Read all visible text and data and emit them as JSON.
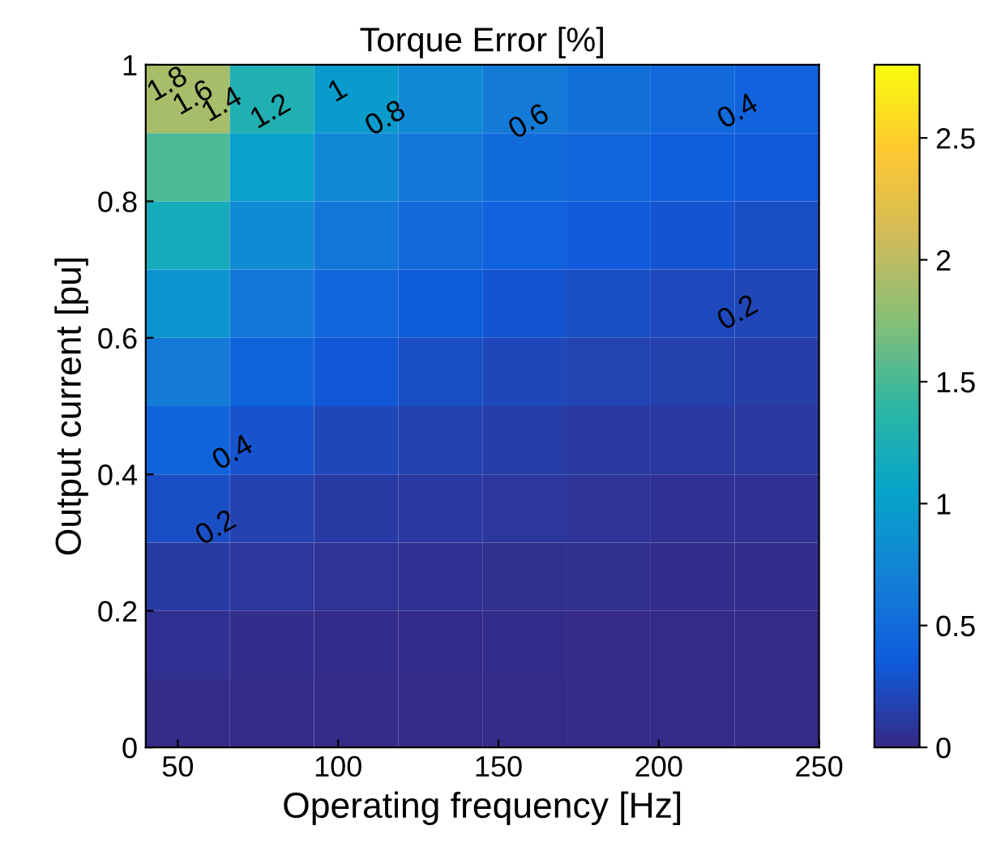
{
  "chart_data": {
    "type": "heatmap",
    "title": "Torque Error [%]",
    "xlabel": "Operating frequency [Hz]",
    "ylabel": "Output current [pu]",
    "x": [
      53.1,
      79.4,
      105.6,
      131.9,
      158.1,
      184.4,
      210.6,
      236.9
    ],
    "y": [
      0.95,
      0.85,
      0.75,
      0.65,
      0.55,
      0.45,
      0.35,
      0.25,
      0.15,
      0.05
    ],
    "cells": [
      [
        1.9,
        1.27,
        0.96,
        0.77,
        0.64,
        0.55,
        0.48,
        0.42
      ],
      [
        1.52,
        1.02,
        0.77,
        0.61,
        0.51,
        0.44,
        0.38,
        0.34
      ],
      [
        1.19,
        0.79,
        0.6,
        0.48,
        0.4,
        0.34,
        0.3,
        0.26
      ],
      [
        0.89,
        0.6,
        0.45,
        0.36,
        0.3,
        0.26,
        0.22,
        0.2
      ],
      [
        0.64,
        0.43,
        0.32,
        0.26,
        0.21,
        0.18,
        0.16,
        0.14
      ],
      [
        0.43,
        0.29,
        0.21,
        0.17,
        0.14,
        0.12,
        0.11,
        0.1
      ],
      [
        0.26,
        0.17,
        0.13,
        0.1,
        0.09,
        0.07,
        0.06,
        0.06
      ],
      [
        0.13,
        0.09,
        0.07,
        0.05,
        0.04,
        0.04,
        0.03,
        0.03
      ],
      [
        0.05,
        0.03,
        0.02,
        0.02,
        0.02,
        0.01,
        0.01,
        0.01
      ],
      [
        0.01,
        0,
        0,
        0,
        0,
        0,
        0,
        0
      ]
    ],
    "xlim": [
      40,
      250
    ],
    "xticks": [
      50,
      100,
      150,
      200,
      250
    ],
    "ylim": [
      0,
      1
    ],
    "yticks": [
      0,
      0.2,
      0.4,
      0.6,
      0.8,
      1
    ],
    "clim": [
      0,
      2.8
    ],
    "cticks": [
      0,
      0.5,
      1,
      1.5,
      2,
      2.5
    ],
    "annotations": [
      "0.2",
      "0.4",
      "0.2",
      "0.4",
      "0.6",
      "0.8",
      "1",
      "1.2",
      "1.4",
      "1.6",
      "1.8"
    ]
  }
}
